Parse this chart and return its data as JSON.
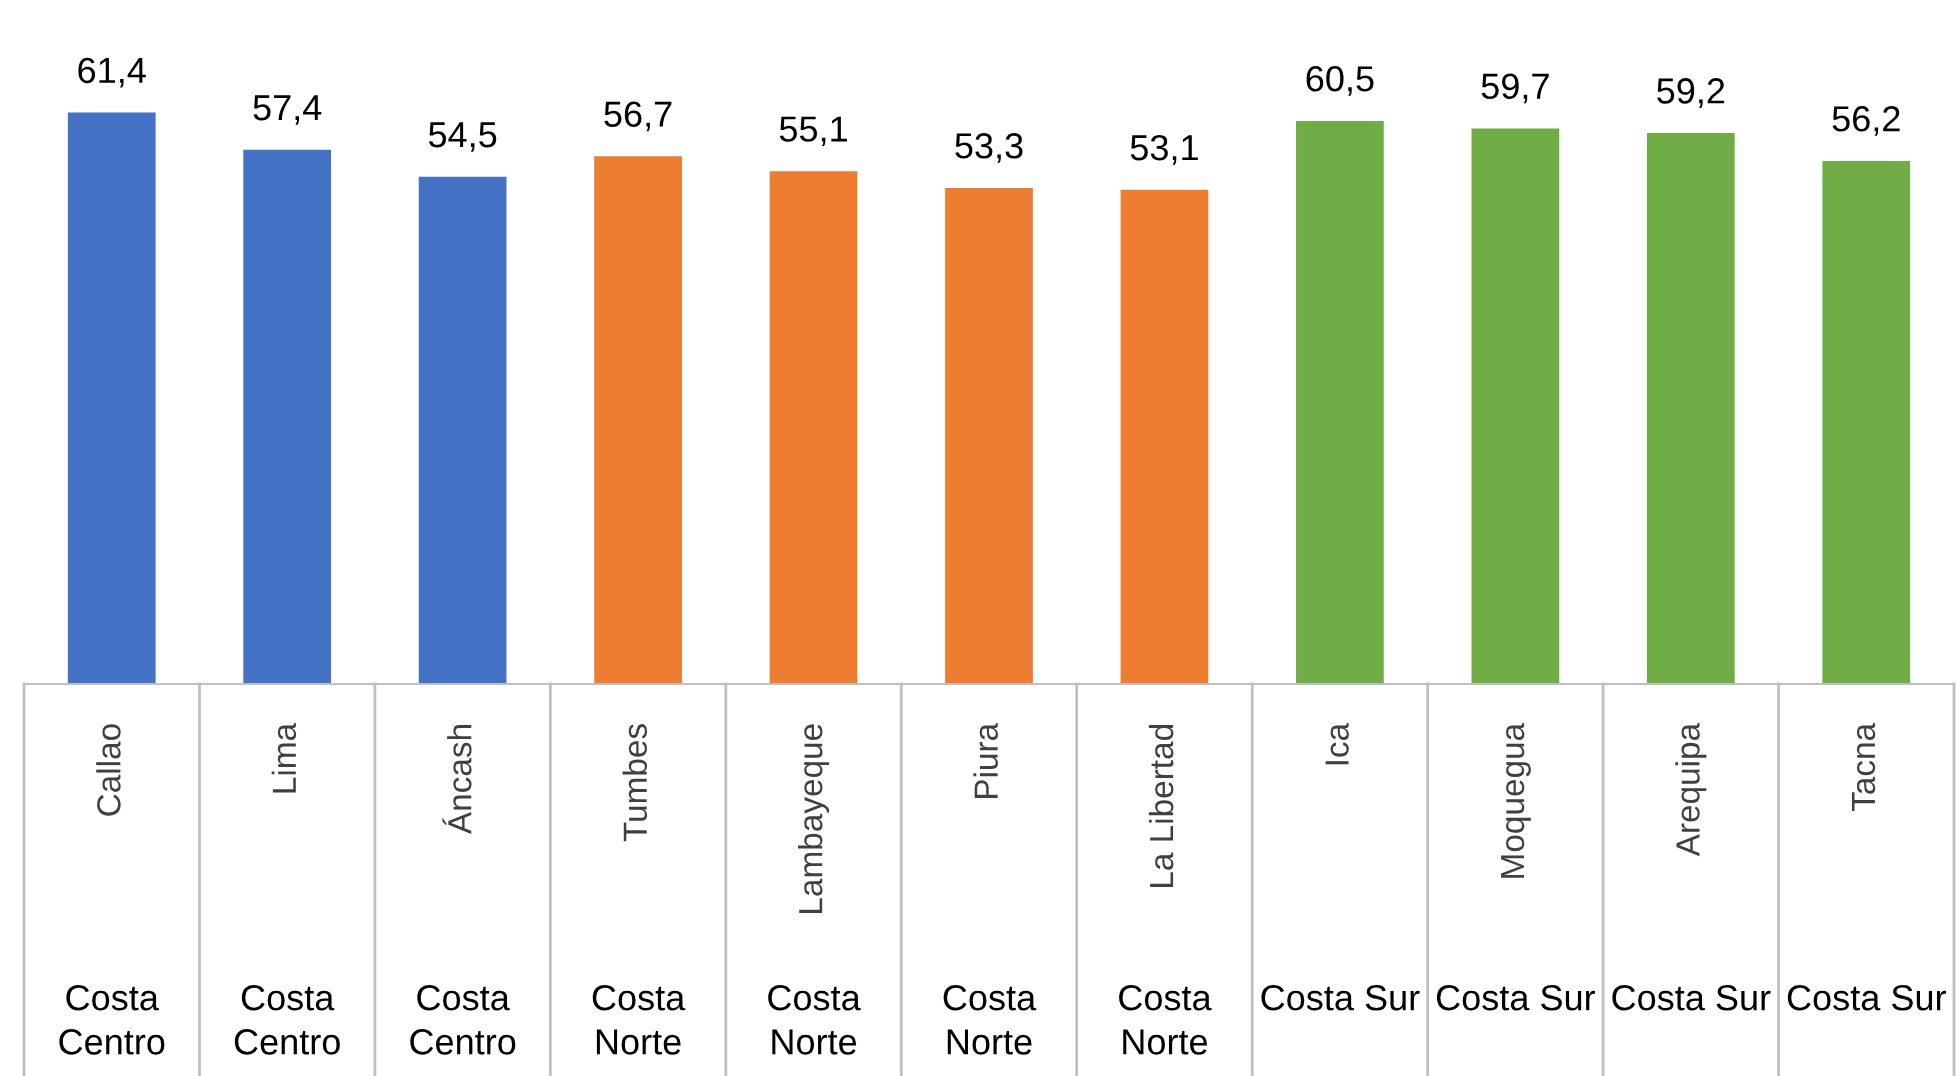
{
  "chart_data": {
    "type": "bar",
    "categories": [
      "Callao",
      "Lima",
      "Áncash",
      "Tumbes",
      "Lambayeque",
      "Piura",
      "La Libertad",
      "Ica",
      "Moquegua",
      "Arequipa",
      "Tacna"
    ],
    "values": [
      61.4,
      57.4,
      54.5,
      56.7,
      55.1,
      53.3,
      53.1,
      60.5,
      59.7,
      59.2,
      56.2
    ],
    "value_labels": [
      "61,4",
      "57,4",
      "54,5",
      "56,7",
      "55,1",
      "53,3",
      "53,1",
      "60,5",
      "59,7",
      "59,2",
      "56,2"
    ],
    "colors": [
      "#4472c4",
      "#4472c4",
      "#4472c4",
      "#ed7d31",
      "#ed7d31",
      "#ed7d31",
      "#ed7d31",
      "#70ad47",
      "#70ad47",
      "#70ad47",
      "#70ad47"
    ],
    "tick_labels": "x",
    "annotations": [
      "Costa Centro",
      "Costa Centro",
      "Costa Centro",
      "Costa Norte",
      "Costa Norte",
      "Costa Norte",
      "Costa Norte",
      "Costa Sur",
      "Costa Sur",
      "Costa Sur",
      "Costa Sur"
    ]
  }
}
